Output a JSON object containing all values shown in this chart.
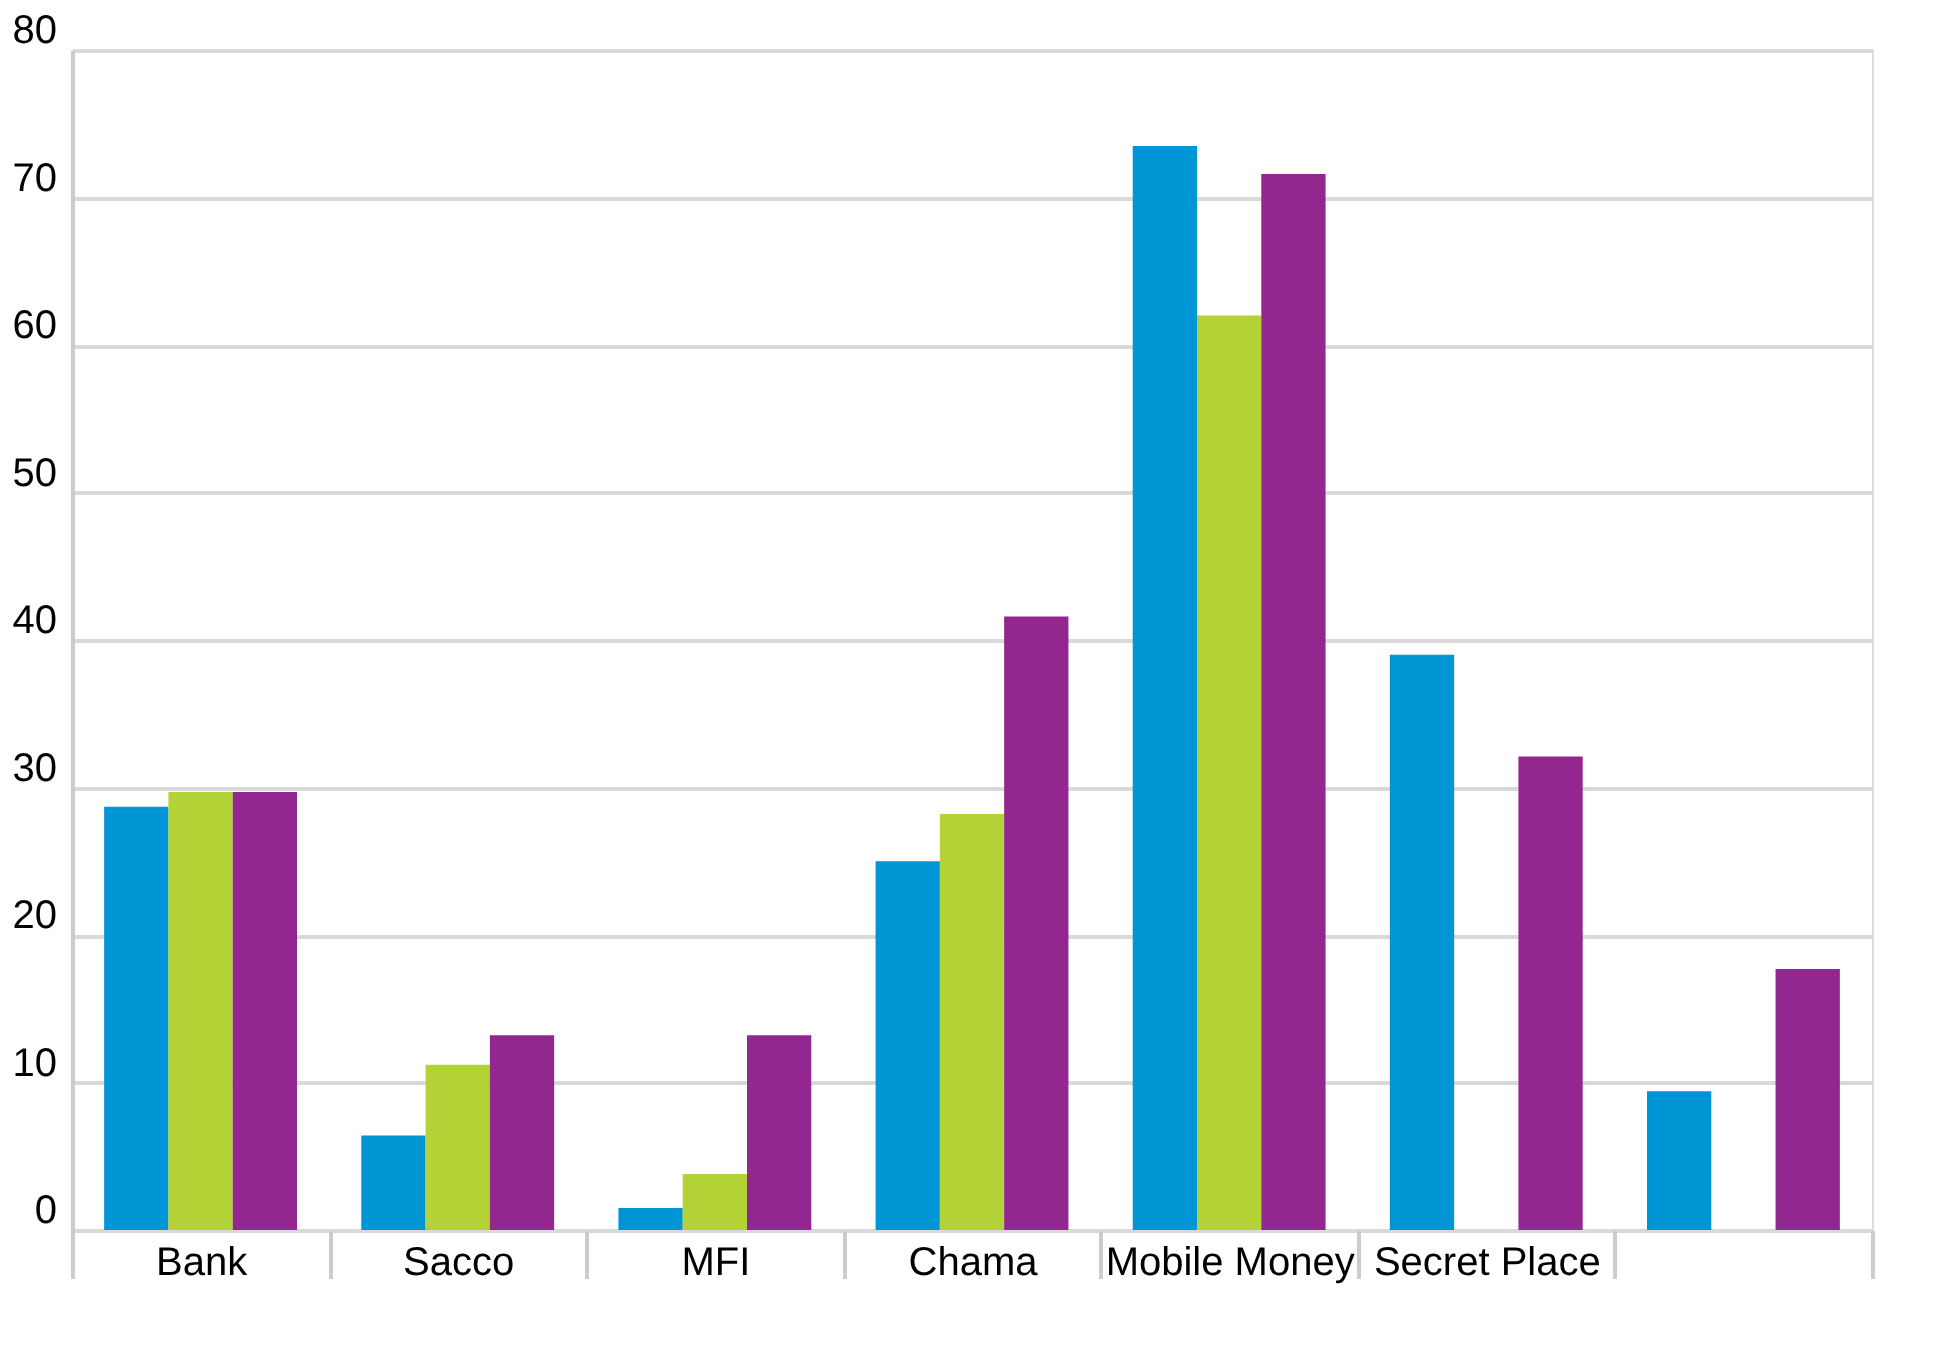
{
  "chart_data": {
    "type": "bar",
    "categories": [
      "Bank",
      "Sacco",
      "MFI",
      "Chama",
      "Mobile Money",
      "Secret Place",
      null
    ],
    "series": [
      {
        "color": "#0096d6",
        "values": [
          28.7,
          6.4,
          1.5,
          25.0,
          73.5,
          39.0,
          9.4
        ]
      },
      {
        "color": "#b2d235",
        "values": [
          29.7,
          11.2,
          3.8,
          28.2,
          62.0,
          null,
          null
        ]
      },
      {
        "color": "#92278f",
        "values": [
          29.7,
          13.2,
          13.2,
          41.6,
          71.6,
          32.1,
          17.7
        ]
      }
    ],
    "ylim": [
      0,
      80
    ],
    "yticks": [
      0,
      10,
      20,
      30,
      40,
      50,
      60,
      70,
      80
    ],
    "grid": "y",
    "legend": false
  }
}
